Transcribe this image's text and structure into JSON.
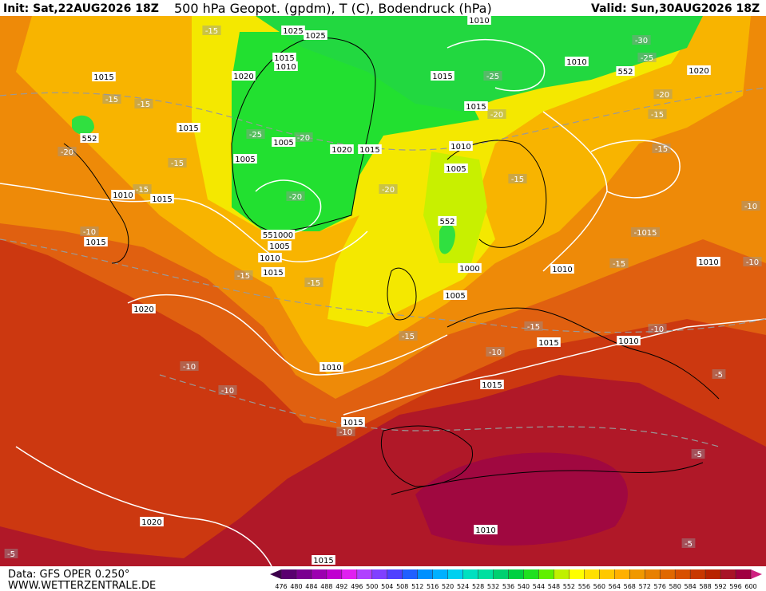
{
  "header": {
    "init": "Init: Sat,22AUG2026 18Z",
    "title": "500 hPa Geopot. (gpdm), T (C), Bodendruck (hPa)",
    "valid": "Valid: Sun,30AUG2026 18Z"
  },
  "footer": {
    "source": "Data: GFS OPER 0.250°",
    "site": "WWW.WETTERZENTRALE.DE"
  },
  "colorbar": {
    "ticks": [
      476,
      480,
      484,
      488,
      492,
      496,
      500,
      504,
      508,
      512,
      516,
      520,
      524,
      528,
      532,
      536,
      540,
      544,
      548,
      552,
      556,
      560,
      564,
      568,
      572,
      576,
      580,
      584,
      588,
      592,
      596,
      600
    ],
    "colors": [
      "#3c004c",
      "#5a0070",
      "#7a0090",
      "#9c00b0",
      "#c000d0",
      "#e020f0",
      "#b040ff",
      "#8040ff",
      "#5040ff",
      "#2060ff",
      "#0090ff",
      "#00b0ff",
      "#00d0f0",
      "#00e0c0",
      "#00e0a0",
      "#00d070",
      "#00d040",
      "#20e020",
      "#60f000",
      "#c0f000",
      "#ffff00",
      "#ffe000",
      "#ffc800",
      "#ffb000",
      "#f09800",
      "#e88000",
      "#e06800",
      "#d85000",
      "#c83800",
      "#b82400",
      "#a81428",
      "#a00040",
      "#d02080"
    ]
  },
  "map_labels": [
    "1015",
    "-15",
    "1025",
    "1025",
    "1010",
    "-30",
    "-25",
    "1010",
    "552",
    "1020",
    "1015",
    "1010",
    "1020",
    "1015",
    "-25",
    "-15",
    "-15",
    "-20",
    "1015",
    "-20",
    "-15",
    "1015",
    "552",
    "-25",
    "-20",
    "1005",
    "1010",
    "-15",
    "-20",
    "1020",
    "1015",
    "1005",
    "-15",
    "1005",
    "-15",
    "-15",
    "-20",
    "1010",
    "1015",
    "-20",
    "-10",
    "552",
    "-10",
    "1015",
    "551000",
    "-1015",
    "1005",
    "1010",
    "1010",
    "-10",
    "-15",
    "1000",
    "1010",
    "1015",
    "-15",
    "-15",
    "1005",
    "1020",
    "-15",
    "-15",
    "-10",
    "1015",
    "1010",
    "-10",
    "-10",
    "1010",
    "-5",
    "-10",
    "1015",
    "1015",
    "-10",
    "-5",
    "1020",
    "1010",
    "-5",
    "-5",
    "1015"
  ]
}
